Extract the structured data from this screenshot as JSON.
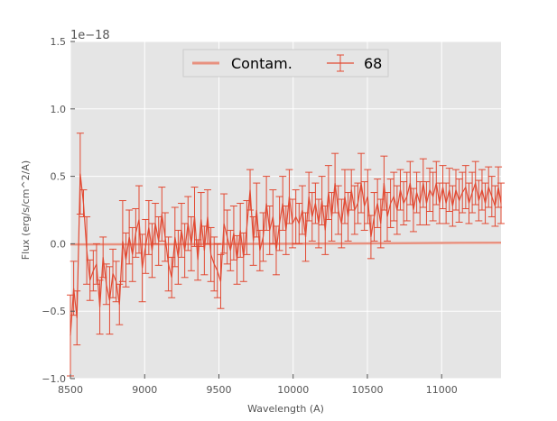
{
  "chart_data": {
    "type": "line",
    "title": "",
    "xlabel": "Wavelength (A)",
    "ylabel": "Flux (erg/s/cm^2/A)",
    "y_offset_label": "1e−18",
    "xlim": [
      8500,
      11400
    ],
    "ylim": [
      -1.0,
      1.5
    ],
    "x_ticks": [
      8500,
      9000,
      9500,
      10000,
      10500,
      11000
    ],
    "x_tick_labels": [
      "8500",
      "9000",
      "9500",
      "10000",
      "10500",
      "11000"
    ],
    "y_ticks": [
      -1.0,
      -0.5,
      0.0,
      0.5,
      1.0,
      1.5
    ],
    "y_tick_labels": [
      "−1.0",
      "−0.5",
      "0.0",
      "0.5",
      "1.0",
      "1.5"
    ],
    "grid": true,
    "legend_position": "top-center",
    "colors": {
      "plot_bg": "#e5e5e5",
      "grid": "#ffffff",
      "series": "#e24a33",
      "contam": "#e8917f"
    },
    "series": [
      {
        "name": "Contam.",
        "x": [
          8500,
          9000,
          9500,
          10000,
          10500,
          11000,
          11400
        ],
        "y": [
          -0.005,
          -0.004,
          -0.002,
          0.0,
          0.003,
          0.006,
          0.008
        ]
      },
      {
        "name": "68",
        "x": [
          8500,
          8522,
          8544,
          8566,
          8588,
          8610,
          8632,
          8654,
          8676,
          8698,
          8720,
          8742,
          8764,
          8786,
          8808,
          8830,
          8852,
          8874,
          8896,
          8918,
          8940,
          8962,
          8984,
          9006,
          9028,
          9050,
          9072,
          9094,
          9116,
          9138,
          9160,
          9182,
          9204,
          9226,
          9248,
          9270,
          9292,
          9314,
          9336,
          9358,
          9380,
          9402,
          9424,
          9446,
          9468,
          9490,
          9512,
          9534,
          9556,
          9578,
          9600,
          9622,
          9644,
          9666,
          9688,
          9710,
          9732,
          9754,
          9776,
          9798,
          9820,
          9842,
          9864,
          9886,
          9908,
          9930,
          9952,
          9974,
          9996,
          10018,
          10040,
          10062,
          10084,
          10106,
          10128,
          10150,
          10172,
          10194,
          10216,
          10238,
          10260,
          10282,
          10304,
          10326,
          10348,
          10370,
          10392,
          10414,
          10436,
          10458,
          10480,
          10502,
          10524,
          10546,
          10568,
          10590,
          10612,
          10634,
          10656,
          10678,
          10700,
          10722,
          10744,
          10766,
          10788,
          10810,
          10832,
          10854,
          10876,
          10898,
          10920,
          10942,
          10964,
          10986,
          11008,
          11030,
          11052,
          11074,
          11096,
          11118,
          11140,
          11162,
          11184,
          11206,
          11228,
          11250,
          11272,
          11294,
          11316,
          11338,
          11360,
          11382,
          11400
        ],
        "y": [
          -0.68,
          -0.33,
          -0.55,
          0.52,
          0.3,
          -0.05,
          -0.27,
          -0.2,
          -0.15,
          -0.47,
          -0.1,
          -0.3,
          -0.42,
          -0.22,
          -0.28,
          -0.45,
          0.02,
          -0.12,
          0.05,
          -0.08,
          0.08,
          0.18,
          -0.18,
          -0.02,
          0.12,
          -0.05,
          0.15,
          0.02,
          0.22,
          0.05,
          -0.15,
          -0.25,
          0.05,
          -0.1,
          0.1,
          -0.05,
          0.15,
          0.0,
          0.2,
          -0.12,
          0.18,
          -0.05,
          0.2,
          -0.08,
          -0.15,
          -0.2,
          -0.28,
          0.15,
          0.05,
          -0.05,
          0.08,
          -0.12,
          0.1,
          -0.1,
          0.12,
          0.4,
          0.02,
          0.25,
          -0.05,
          0.05,
          0.3,
          0.1,
          0.2,
          -0.05,
          0.15,
          0.3,
          0.1,
          0.35,
          0.15,
          0.2,
          0.15,
          0.25,
          0.05,
          0.35,
          0.2,
          0.3,
          0.15,
          0.32,
          0.1,
          0.38,
          0.2,
          0.45,
          0.25,
          0.15,
          0.35,
          0.2,
          0.4,
          0.25,
          0.3,
          0.45,
          0.28,
          0.35,
          0.05,
          0.2,
          0.3,
          0.15,
          0.45,
          0.2,
          0.3,
          0.35,
          0.25,
          0.4,
          0.3,
          0.35,
          0.45,
          0.25,
          0.38,
          0.3,
          0.45,
          0.3,
          0.4,
          0.35,
          0.45,
          0.3,
          0.42,
          0.3,
          0.4,
          0.28,
          0.4,
          0.32,
          0.38,
          0.42,
          0.3,
          0.38,
          0.45,
          0.32,
          0.4,
          0.3,
          0.42,
          0.35,
          0.28,
          0.42,
          0.3
        ],
        "err": [
          0.3,
          0.2,
          0.2,
          0.3,
          0.1,
          0.25,
          0.15,
          0.15,
          0.15,
          0.2,
          0.15,
          0.15,
          0.25,
          0.18,
          0.15,
          0.15,
          0.3,
          0.2,
          0.2,
          0.2,
          0.18,
          0.25,
          0.25,
          0.2,
          0.2,
          0.2,
          0.15,
          0.18,
          0.2,
          0.18,
          0.2,
          0.15,
          0.22,
          0.2,
          0.2,
          0.2,
          0.2,
          0.2,
          0.22,
          0.15,
          0.2,
          0.18,
          0.2,
          0.2,
          0.2,
          0.2,
          0.2,
          0.22,
          0.2,
          0.15,
          0.2,
          0.18,
          0.2,
          0.18,
          0.2,
          0.15,
          0.18,
          0.2,
          0.15,
          0.18,
          0.2,
          0.18,
          0.2,
          0.18,
          0.2,
          0.2,
          0.18,
          0.2,
          0.18,
          0.2,
          0.15,
          0.18,
          0.18,
          0.18,
          0.18,
          0.15,
          0.18,
          0.18,
          0.18,
          0.2,
          0.18,
          0.22,
          0.18,
          0.18,
          0.2,
          0.18,
          0.15,
          0.18,
          0.15,
          0.22,
          0.18,
          0.2,
          0.16,
          0.18,
          0.18,
          0.18,
          0.2,
          0.18,
          0.18,
          0.18,
          0.18,
          0.15,
          0.16,
          0.18,
          0.16,
          0.16,
          0.15,
          0.16,
          0.18,
          0.16,
          0.16,
          0.18,
          0.16,
          0.15,
          0.16,
          0.15,
          0.16,
          0.15,
          0.15,
          0.16,
          0.15,
          0.16,
          0.15,
          0.15,
          0.16,
          0.15,
          0.15,
          0.15,
          0.15,
          0.15,
          0.15,
          0.15,
          0.15
        ]
      }
    ]
  }
}
